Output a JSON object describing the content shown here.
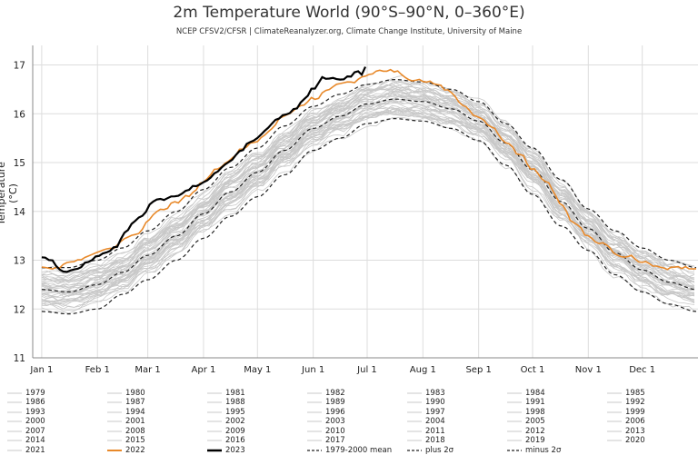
{
  "title": "2m Temperature World (90°S–90°N, 0–360°E)",
  "subtitle": "NCEP CFSV2/CFSR | ClimateReanalyzer.org, Climate Change Institute, University of Maine",
  "chart_data": {
    "type": "line",
    "title": "2m Temperature World (90°S–90°N, 0–360°E)",
    "ylabel": "Temperature (°C)",
    "xlabel": "",
    "ylim": [
      11,
      17.4
    ],
    "xlim_day": [
      -5,
      365
    ],
    "yticks": [
      11,
      12,
      13,
      14,
      15,
      16,
      17
    ],
    "months": [
      {
        "label": "Jan 1",
        "day": 0
      },
      {
        "label": "Feb 1",
        "day": 31
      },
      {
        "label": "Mar 1",
        "day": 59
      },
      {
        "label": "Apr 1",
        "day": 90
      },
      {
        "label": "May 1",
        "day": 120
      },
      {
        "label": "Jun 1",
        "day": 151
      },
      {
        "label": "Jul 1",
        "day": 181
      },
      {
        "label": "Aug 1",
        "day": 212
      },
      {
        "label": "Sep 1",
        "day": 243
      },
      {
        "label": "Oct 1",
        "day": 273
      },
      {
        "label": "Nov 1",
        "day": 304
      },
      {
        "label": "Dec 1",
        "day": 334
      }
    ],
    "grid": true,
    "series": [
      {
        "name": "1979-2000 mean",
        "style": "dashed",
        "color": "#222222",
        "x": [
          0,
          15,
          31,
          45,
          59,
          75,
          90,
          105,
          120,
          135,
          151,
          166,
          181,
          196,
          212,
          228,
          243,
          258,
          273,
          289,
          304,
          319,
          334,
          349,
          364
        ],
        "y": [
          12.4,
          12.35,
          12.5,
          12.75,
          13.1,
          13.5,
          13.95,
          14.4,
          14.8,
          15.25,
          15.7,
          15.95,
          16.2,
          16.3,
          16.25,
          16.1,
          15.85,
          15.4,
          14.85,
          14.2,
          13.65,
          13.15,
          12.8,
          12.55,
          12.4
        ]
      },
      {
        "name": "plus 2σ",
        "style": "dashed",
        "color": "#222222",
        "x": [
          0,
          15,
          31,
          45,
          59,
          75,
          90,
          105,
          120,
          135,
          151,
          166,
          181,
          196,
          212,
          228,
          243,
          258,
          273,
          289,
          304,
          319,
          334,
          349,
          364
        ],
        "y": [
          12.85,
          12.85,
          13.0,
          13.25,
          13.6,
          14.0,
          14.45,
          14.9,
          15.3,
          15.75,
          16.15,
          16.4,
          16.6,
          16.7,
          16.65,
          16.5,
          16.25,
          15.8,
          15.3,
          14.65,
          14.05,
          13.6,
          13.25,
          13.0,
          12.85
        ]
      },
      {
        "name": "minus 2σ",
        "style": "dashed",
        "color": "#222222",
        "x": [
          0,
          15,
          31,
          45,
          59,
          75,
          90,
          105,
          120,
          135,
          151,
          166,
          181,
          196,
          212,
          228,
          243,
          258,
          273,
          289,
          304,
          319,
          334,
          349,
          364
        ],
        "y": [
          11.95,
          11.9,
          12.0,
          12.3,
          12.6,
          13.0,
          13.45,
          13.9,
          14.3,
          14.75,
          15.25,
          15.5,
          15.8,
          15.9,
          15.85,
          15.7,
          15.45,
          14.95,
          14.35,
          13.7,
          13.2,
          12.7,
          12.35,
          12.1,
          11.95
        ]
      },
      {
        "name": "2022",
        "style": "solid",
        "color": "#e8892a",
        "x": [
          0,
          8,
          15,
          22,
          31,
          38,
          45,
          52,
          59,
          66,
          75,
          82,
          90,
          98,
          105,
          112,
          120,
          128,
          135,
          143,
          151,
          158,
          166,
          173,
          181,
          188,
          196,
          204,
          212,
          220,
          228,
          235,
          243,
          250,
          258,
          266,
          273,
          281,
          289,
          296,
          304,
          311,
          319,
          326,
          334,
          341,
          349,
          356,
          364
        ],
        "y": [
          12.9,
          12.85,
          12.95,
          13.0,
          13.15,
          13.2,
          13.4,
          13.55,
          13.8,
          14.0,
          14.2,
          14.3,
          14.6,
          14.9,
          15.1,
          15.3,
          15.45,
          15.7,
          15.95,
          16.1,
          16.3,
          16.45,
          16.6,
          16.65,
          16.75,
          16.85,
          16.85,
          16.75,
          16.7,
          16.6,
          16.45,
          16.2,
          15.95,
          15.7,
          15.45,
          15.15,
          14.85,
          14.6,
          14.15,
          13.8,
          13.5,
          13.35,
          13.15,
          13.1,
          13.0,
          12.9,
          12.85,
          12.85,
          12.8
        ]
      },
      {
        "name": "2023",
        "style": "solid",
        "color": "#000000",
        "x": [
          0,
          5,
          10,
          15,
          20,
          25,
          31,
          36,
          41,
          46,
          51,
          56,
          61,
          66,
          71,
          76,
          81,
          86,
          91,
          96,
          101,
          106,
          111,
          116,
          121,
          126,
          131,
          136,
          141,
          146,
          151,
          156,
          160,
          165,
          170,
          175,
          178,
          181
        ],
        "y": [
          13.1,
          12.95,
          12.8,
          12.75,
          12.85,
          12.95,
          13.1,
          13.2,
          13.3,
          13.55,
          13.75,
          13.95,
          14.15,
          14.25,
          14.3,
          14.35,
          14.4,
          14.5,
          14.65,
          14.8,
          14.95,
          15.1,
          15.25,
          15.4,
          15.55,
          15.7,
          15.85,
          16.0,
          16.1,
          16.25,
          16.5,
          16.75,
          16.7,
          16.65,
          16.75,
          16.85,
          16.8,
          17.0
        ]
      }
    ],
    "background_years": [
      "1979",
      "1980",
      "1981",
      "1982",
      "1983",
      "1984",
      "1985",
      "1986",
      "1987",
      "1988",
      "1989",
      "1990",
      "1991",
      "1992",
      "1993",
      "1994",
      "1995",
      "1996",
      "1997",
      "1998",
      "1999",
      "2000",
      "2001",
      "2002",
      "2003",
      "2004",
      "2005",
      "2006",
      "2007",
      "2008",
      "2009",
      "2010",
      "2011",
      "2012",
      "2013",
      "2014",
      "2015",
      "2016",
      "2017",
      "2018",
      "2019",
      "2020",
      "2021"
    ],
    "background_color": "#c8c8c8"
  },
  "legend": [
    {
      "label": "1979",
      "kind": "year"
    },
    {
      "label": "1980",
      "kind": "year"
    },
    {
      "label": "1981",
      "kind": "year"
    },
    {
      "label": "1982",
      "kind": "year"
    },
    {
      "label": "1983",
      "kind": "year"
    },
    {
      "label": "1984",
      "kind": "year"
    },
    {
      "label": "1985",
      "kind": "year"
    },
    {
      "label": "1986",
      "kind": "year"
    },
    {
      "label": "1987",
      "kind": "year"
    },
    {
      "label": "1988",
      "kind": "year"
    },
    {
      "label": "1989",
      "kind": "year"
    },
    {
      "label": "1990",
      "kind": "year"
    },
    {
      "label": "1991",
      "kind": "year"
    },
    {
      "label": "1992",
      "kind": "year"
    },
    {
      "label": "1993",
      "kind": "year"
    },
    {
      "label": "1994",
      "kind": "year"
    },
    {
      "label": "1995",
      "kind": "year"
    },
    {
      "label": "1996",
      "kind": "year"
    },
    {
      "label": "1997",
      "kind": "year"
    },
    {
      "label": "1998",
      "kind": "year"
    },
    {
      "label": "1999",
      "kind": "year"
    },
    {
      "label": "2000",
      "kind": "year"
    },
    {
      "label": "2001",
      "kind": "year"
    },
    {
      "label": "2002",
      "kind": "year"
    },
    {
      "label": "2003",
      "kind": "year"
    },
    {
      "label": "2004",
      "kind": "year"
    },
    {
      "label": "2005",
      "kind": "year"
    },
    {
      "label": "2006",
      "kind": "year"
    },
    {
      "label": "2007",
      "kind": "year"
    },
    {
      "label": "2008",
      "kind": "year"
    },
    {
      "label": "2009",
      "kind": "year"
    },
    {
      "label": "2010",
      "kind": "year"
    },
    {
      "label": "2011",
      "kind": "year"
    },
    {
      "label": "2012",
      "kind": "year"
    },
    {
      "label": "2013",
      "kind": "year"
    },
    {
      "label": "2014",
      "kind": "year"
    },
    {
      "label": "2015",
      "kind": "year"
    },
    {
      "label": "2016",
      "kind": "year"
    },
    {
      "label": "2017",
      "kind": "year"
    },
    {
      "label": "2018",
      "kind": "year"
    },
    {
      "label": "2019",
      "kind": "year"
    },
    {
      "label": "2020",
      "kind": "year"
    },
    {
      "label": "2021",
      "kind": "year"
    },
    {
      "label": "2022",
      "kind": "2022"
    },
    {
      "label": "2023",
      "kind": "2023"
    },
    {
      "label": "1979-2000 mean",
      "kind": "mean"
    },
    {
      "label": "plus 2σ",
      "kind": "sigma"
    },
    {
      "label": "minus 2σ",
      "kind": "sigma"
    }
  ]
}
